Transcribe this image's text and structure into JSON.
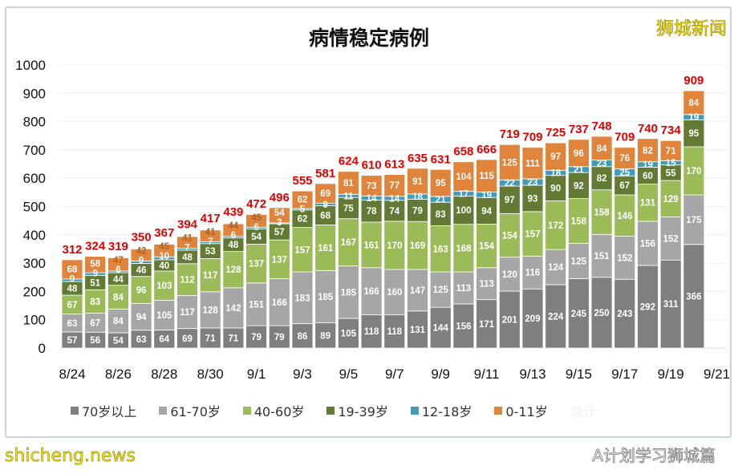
{
  "watermarks": {
    "top_right": "狮城新闻",
    "bottom_left": "shicheng.news",
    "bottom_right": "A计划学习狮城篇"
  },
  "chart_data": {
    "type": "bar",
    "stacked": true,
    "title": "病情稳定病例",
    "xlabel": "",
    "ylabel": "",
    "ylim": [
      0,
      1000
    ],
    "yticks": [
      0,
      100,
      200,
      300,
      400,
      500,
      600,
      700,
      800,
      900,
      1000
    ],
    "grid": true,
    "legend_position": "bottom",
    "categories": [
      "8/24",
      "8/25",
      "8/26",
      "8/27",
      "8/28",
      "8/29",
      "8/30",
      "8/31",
      "9/1",
      "9/2",
      "9/3",
      "9/4",
      "9/5",
      "9/6",
      "9/7",
      "9/8",
      "9/9",
      "9/10",
      "9/11",
      "9/12",
      "9/13",
      "9/14",
      "9/15",
      "9/16",
      "9/17",
      "9/18",
      "9/19",
      "9/20"
    ],
    "xtick_labels": [
      "8/24",
      "8/26",
      "8/28",
      "8/30",
      "9/1",
      "9/3",
      "9/5",
      "9/7",
      "9/9",
      "9/11",
      "9/13",
      "9/15",
      "9/17",
      "9/19",
      "9/21"
    ],
    "series": [
      {
        "name": "70岁以上",
        "color": "#7f7f7f",
        "values": [
          57,
          56,
          54,
          63,
          64,
          69,
          71,
          71,
          79,
          79,
          86,
          89,
          105,
          118,
          118,
          131,
          144,
          156,
          171,
          201,
          209,
          224,
          245,
          250,
          243,
          292,
          311,
          366
        ]
      },
      {
        "name": "61-70岁",
        "color": "#a6a6a6",
        "values": [
          63,
          67,
          84,
          94,
          105,
          117,
          128,
          142,
          151,
          166,
          183,
          185,
          185,
          166,
          160,
          147,
          125,
          113,
          113,
          120,
          116,
          124,
          125,
          151,
          152,
          156,
          152,
          175
        ]
      },
      {
        "name": "40-60岁",
        "color": "#9bbb59",
        "values": [
          67,
          83,
          84,
          96,
          103,
          112,
          117,
          128,
          137,
          137,
          157,
          161,
          167,
          161,
          170,
          169,
          163,
          168,
          154,
          154,
          157,
          172,
          158,
          158,
          146,
          131,
          129,
          170
        ]
      },
      {
        "name": "19-39岁",
        "color": "#627a34",
        "values": [
          48,
          51,
          44,
          46,
          40,
          48,
          53,
          48,
          54,
          57,
          62,
          68,
          75,
          78,
          74,
          79,
          83,
          100,
          94,
          97,
          93,
          90,
          92,
          82,
          67,
          60,
          55,
          95
        ]
      },
      {
        "name": "12-18岁",
        "color": "#3f9bb8",
        "values": [
          9,
          9,
          6,
          9,
          10,
          7,
          7,
          6,
          6,
          3,
          5,
          9,
          11,
          14,
          14,
          18,
          21,
          17,
          19,
          22,
          23,
          18,
          21,
          23,
          25,
          19,
          15,
          19
        ]
      },
      {
        "name": "0-11岁",
        "color": "#e0843c",
        "values": [
          68,
          58,
          47,
          42,
          45,
          41,
          41,
          44,
          45,
          54,
          62,
          69,
          81,
          73,
          77,
          91,
          95,
          104,
          115,
          125,
          111,
          97,
          96,
          84,
          76,
          82,
          71,
          84
        ]
      }
    ],
    "totals_name": "总计",
    "totals": [
      312,
      324,
      319,
      350,
      367,
      394,
      417,
      439,
      472,
      496,
      555,
      581,
      624,
      610,
      613,
      635,
      631,
      658,
      666,
      719,
      709,
      725,
      737,
      748,
      709,
      740,
      734,
      909
    ],
    "totals_color": "#e00000"
  }
}
